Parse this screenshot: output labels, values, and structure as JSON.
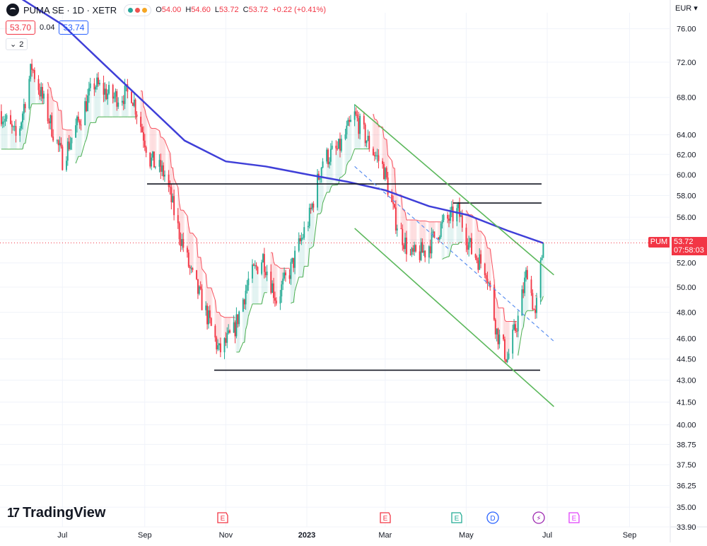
{
  "header": {
    "symbol_title": "PUMA SE · 1D · XETR",
    "ohlc": {
      "open_label": "O",
      "open": "54.00",
      "high_label": "H",
      "high": "54.60",
      "low_label": "L",
      "low": "53.72",
      "close_label": "C",
      "close": "53.72",
      "change": "+0.22 (+0.41%)"
    },
    "status_dot_colors": [
      "#26a69a",
      "#ef5350",
      "#f5a623"
    ],
    "bid": "53.70",
    "spread": "0.04",
    "ask": "53.74",
    "indicator_count": "2",
    "indicator_toggle_icon": "chevron-down-icon"
  },
  "price_axis": {
    "currency": "EUR",
    "ticks": [
      "76.00",
      "72.00",
      "68.00",
      "64.00",
      "62.00",
      "60.00",
      "58.00",
      "56.00",
      "54.00",
      "52.00",
      "50.00",
      "48.00",
      "46.00",
      "44.50",
      "43.00",
      "41.50",
      "40.00",
      "38.75",
      "37.50",
      "36.25",
      "35.00",
      "33.90"
    ],
    "last_price_tag": {
      "symbol": "PUM",
      "price": "53.72",
      "countdown": "07:58:03",
      "color": "#f23645"
    }
  },
  "time_axis": {
    "labels": [
      "Jul",
      "Sep",
      "Nov",
      "2023",
      "Mar",
      "May",
      "Jul",
      "Sep"
    ]
  },
  "event_markers": [
    {
      "letter": "E",
      "kind": "earnings",
      "color": "#f23645"
    },
    {
      "letter": "E",
      "kind": "earnings",
      "color": "#f23645"
    },
    {
      "letter": "E",
      "kind": "earnings",
      "color": "#22ab94"
    },
    {
      "letter": "D",
      "kind": "dividend",
      "color": "#2962ff"
    },
    {
      "letter": "⚡",
      "kind": "split",
      "color": "#9c27b0"
    },
    {
      "letter": "E",
      "kind": "earnings-upcoming",
      "color": "#e040fb"
    }
  ],
  "branding": {
    "logo_text": "TradingView"
  },
  "colors": {
    "up": "#22ab94",
    "down": "#f23645",
    "moving_average": "#3f3fd8",
    "channel": "#5cb85c",
    "level_lines": "#131722",
    "trend_dashed": "#5b8ff0"
  },
  "chart_data": {
    "type": "candlestick",
    "price_scale": "log",
    "y_range": [
      33.9,
      78
    ],
    "x_range": [
      "2022-05-15",
      "2023-09-30"
    ],
    "last_price": 53.72,
    "horizontal_levels": [
      59.1,
      57.3,
      43.7
    ],
    "moving_average_path": [
      [
        "2022-05-20",
        81.0
      ],
      [
        "2022-07-01",
        76.5
      ],
      [
        "2022-08-01",
        71.8
      ],
      [
        "2022-09-01",
        67.4
      ],
      [
        "2022-10-01",
        63.4
      ],
      [
        "2022-11-01",
        61.3
      ],
      [
        "2022-12-01",
        60.8
      ],
      [
        "2023-01-02",
        60.0
      ],
      [
        "2023-02-01",
        59.3
      ],
      [
        "2023-03-01",
        58.5
      ],
      [
        "2023-04-03",
        57.0
      ],
      [
        "2023-05-02",
        56.2
      ],
      [
        "2023-06-01",
        54.8
      ],
      [
        "2023-06-28",
        53.7
      ]
    ],
    "channel_upper": [
      [
        "2023-02-06",
        67.2
      ],
      [
        "2023-07-06",
        51.0
      ]
    ],
    "channel_lower": [
      [
        "2023-02-06",
        55.0
      ],
      [
        "2023-07-06",
        41.2
      ]
    ],
    "trend_dashed": [
      [
        "2023-02-06",
        60.8
      ],
      [
        "2023-07-06",
        45.8
      ]
    ],
    "price_path": [
      [
        "2022-05-15",
        66.5
      ],
      [
        "2022-05-28",
        63.5
      ],
      [
        "2022-06-08",
        71.5
      ],
      [
        "2022-06-20",
        66.0
      ],
      [
        "2022-07-01",
        61.5
      ],
      [
        "2022-07-12",
        65.0
      ],
      [
        "2022-07-25",
        69.5
      ],
      [
        "2022-08-08",
        68.0
      ],
      [
        "2022-08-22",
        68.5
      ],
      [
        "2022-09-05",
        61.5
      ],
      [
        "2022-09-16",
        60.0
      ],
      [
        "2022-09-26",
        55.0
      ],
      [
        "2022-10-06",
        51.0
      ],
      [
        "2022-10-17",
        48.0
      ],
      [
        "2022-10-27",
        45.0
      ],
      [
        "2022-11-07",
        46.5
      ],
      [
        "2022-11-18",
        50.5
      ],
      [
        "2022-11-29",
        52.5
      ],
      [
        "2022-12-09",
        49.0
      ],
      [
        "2022-12-20",
        51.5
      ],
      [
        "2023-01-03",
        56.0
      ],
      [
        "2023-01-13",
        61.5
      ],
      [
        "2023-01-25",
        62.5
      ],
      [
        "2023-02-06",
        66.0
      ],
      [
        "2023-02-17",
        63.0
      ],
      [
        "2023-02-28",
        60.5
      ],
      [
        "2023-03-08",
        56.0
      ],
      [
        "2023-03-20",
        52.5
      ],
      [
        "2023-03-31",
        53.0
      ],
      [
        "2023-04-14",
        55.5
      ],
      [
        "2023-04-25",
        56.5
      ],
      [
        "2023-05-05",
        53.0
      ],
      [
        "2023-05-16",
        51.5
      ],
      [
        "2023-05-24",
        46.5
      ],
      [
        "2023-06-01",
        44.5
      ],
      [
        "2023-06-09",
        47.5
      ],
      [
        "2023-06-16",
        51.5
      ],
      [
        "2023-06-22",
        47.5
      ],
      [
        "2023-06-28",
        53.7
      ]
    ]
  }
}
